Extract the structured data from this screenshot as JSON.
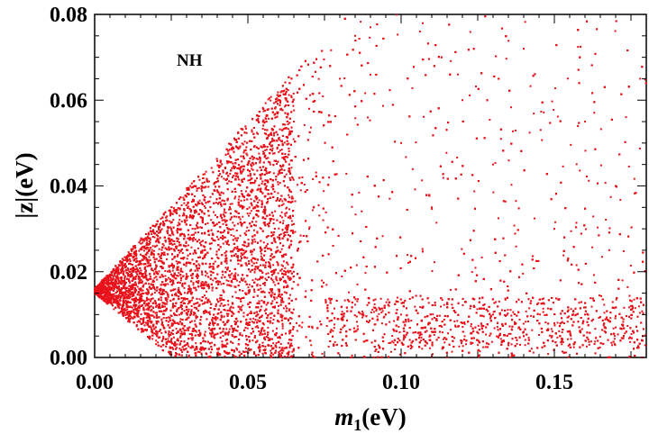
{
  "chart_data": {
    "type": "scatter",
    "annotation": "NH",
    "xlabel": {
      "italic": "m",
      "sub": "1",
      "unit": "(eV)"
    },
    "ylabel": "|z|(eV)",
    "xlim": [
      0,
      0.18
    ],
    "ylim": [
      0,
      0.08
    ],
    "x_ticks": [
      "0.00",
      "0.05",
      "0.10",
      "0.15"
    ],
    "y_ticks": [
      "0.00",
      "0.02",
      "0.04",
      "0.06",
      "0.08"
    ],
    "grid": false,
    "marker_color": "#e8121b",
    "series": [
      {
        "description_of_distribution": "dense wedge near origin",
        "points_sample": [
          [
            0.0,
            0.016
          ],
          [
            0.005,
            0.013
          ],
          [
            0.005,
            0.019
          ],
          [
            0.01,
            0.011
          ],
          [
            0.01,
            0.021
          ],
          [
            0.015,
            0.009
          ],
          [
            0.015,
            0.024
          ],
          [
            0.02,
            0.006
          ],
          [
            0.02,
            0.027
          ],
          [
            0.025,
            0.004
          ],
          [
            0.025,
            0.03
          ],
          [
            0.03,
            0.003
          ],
          [
            0.03,
            0.033
          ],
          [
            0.035,
            0.002
          ],
          [
            0.035,
            0.036
          ],
          [
            0.04,
            0.002
          ],
          [
            0.04,
            0.039
          ],
          [
            0.045,
            0.005
          ],
          [
            0.045,
            0.042
          ],
          [
            0.05,
            0.01
          ],
          [
            0.05,
            0.045
          ],
          [
            0.055,
            0.008
          ],
          [
            0.055,
            0.048
          ],
          [
            0.06,
            0.012
          ],
          [
            0.06,
            0.051
          ],
          [
            0.065,
            0.02
          ],
          [
            0.065,
            0.055
          ],
          [
            0.07,
            0.03
          ],
          [
            0.07,
            0.058
          ],
          [
            0.08,
            0.065
          ],
          [
            0.085,
            0.075
          ],
          [
            0.09,
            0.077
          ],
          [
            0.1,
            0.01
          ],
          [
            0.1,
            0.05
          ],
          [
            0.11,
            0.006
          ],
          [
            0.11,
            0.035
          ],
          [
            0.12,
            0.008
          ],
          [
            0.12,
            0.06
          ],
          [
            0.13,
            0.01
          ],
          [
            0.13,
            0.045
          ],
          [
            0.14,
            0.006
          ],
          [
            0.14,
            0.072
          ],
          [
            0.15,
            0.008
          ],
          [
            0.15,
            0.03
          ],
          [
            0.16,
            0.01
          ],
          [
            0.16,
            0.055
          ],
          [
            0.17,
            0.007
          ],
          [
            0.17,
            0.04
          ],
          [
            0.175,
            0.012
          ],
          [
            0.178,
            0.065
          ]
        ]
      }
    ]
  }
}
